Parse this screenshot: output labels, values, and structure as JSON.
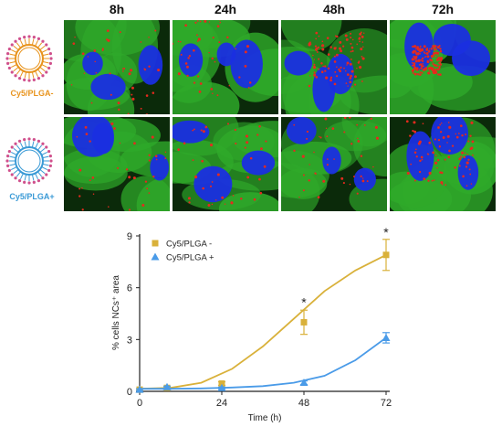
{
  "figure": {
    "column_headers": [
      "8h",
      "24h",
      "48h",
      "72h"
    ],
    "rows": [
      {
        "label": "Cy5/PLGA-",
        "color": "#e8941e",
        "dot_color": "#d0508c"
      },
      {
        "label": "Cy5/PLGA+",
        "color": "#3a9ad6",
        "dot_color": "#d0508c"
      }
    ],
    "micro_colors": {
      "cytoplasm": "#2faa2a",
      "nucleus": "#1a2fe0",
      "particles": "#e62a1e"
    },
    "micro_intensity": [
      [
        0.15,
        0.2,
        0.6,
        0.95
      ],
      [
        0.1,
        0.15,
        0.2,
        0.45
      ]
    ]
  },
  "chart_data": {
    "type": "line",
    "xlabel": "Time (h)",
    "ylabel": "% cells NCs⁺ area",
    "xlim": [
      0,
      72
    ],
    "ylim": [
      0,
      9
    ],
    "xticks": [
      "0",
      "24",
      "48",
      "72"
    ],
    "yticks": [
      "0",
      "3",
      "6",
      "9"
    ],
    "legend_position": "top-left",
    "series": [
      {
        "name": "Cy5/PLGA -",
        "color": "#d9b13a",
        "marker": "square",
        "x": [
          0,
          8,
          24,
          48,
          72
        ],
        "y": [
          0.1,
          0.2,
          0.45,
          4.0,
          7.9
        ],
        "err": [
          0.05,
          0.05,
          0.1,
          0.7,
          0.9
        ],
        "fit_y": [
          0.15,
          0.2,
          0.5,
          1.3,
          2.6,
          4.2,
          5.8,
          7.0,
          7.9
        ]
      },
      {
        "name": "Cy5/PLGA +",
        "color": "#4a9be8",
        "marker": "triangle",
        "x": [
          0,
          8,
          24,
          48,
          72
        ],
        "y": [
          0.1,
          0.25,
          0.2,
          0.5,
          3.1
        ],
        "err": [
          0.05,
          0.05,
          0.05,
          0.1,
          0.3
        ],
        "fit_y": [
          0.15,
          0.15,
          0.17,
          0.22,
          0.3,
          0.5,
          0.9,
          1.8,
          3.1
        ]
      }
    ],
    "annotations": [
      {
        "x": 48,
        "y": 4.9,
        "text": "*"
      },
      {
        "x": 72,
        "y": 8.95,
        "text": "*"
      }
    ]
  }
}
